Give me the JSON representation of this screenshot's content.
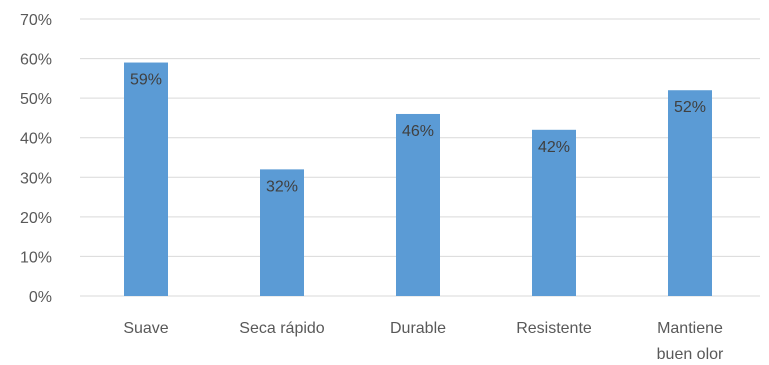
{
  "chart_data": {
    "type": "bar",
    "categories": [
      [
        "Suave"
      ],
      [
        "Seca rápido"
      ],
      [
        "Durable"
      ],
      [
        "Resistente"
      ],
      [
        "Mantiene",
        "buen olor"
      ]
    ],
    "values": [
      59,
      32,
      46,
      42,
      52
    ],
    "data_labels": [
      "59%",
      "32%",
      "46%",
      "42%",
      "52%"
    ],
    "y_ticks": [
      "0%",
      "10%",
      "20%",
      "30%",
      "40%",
      "50%",
      "60%",
      "70%"
    ],
    "ylim": [
      0,
      70
    ],
    "y_unit": "%",
    "grid": true,
    "legend": "none",
    "bar_color": "#5b9bd5",
    "title": "",
    "xlabel": "",
    "ylabel": ""
  }
}
